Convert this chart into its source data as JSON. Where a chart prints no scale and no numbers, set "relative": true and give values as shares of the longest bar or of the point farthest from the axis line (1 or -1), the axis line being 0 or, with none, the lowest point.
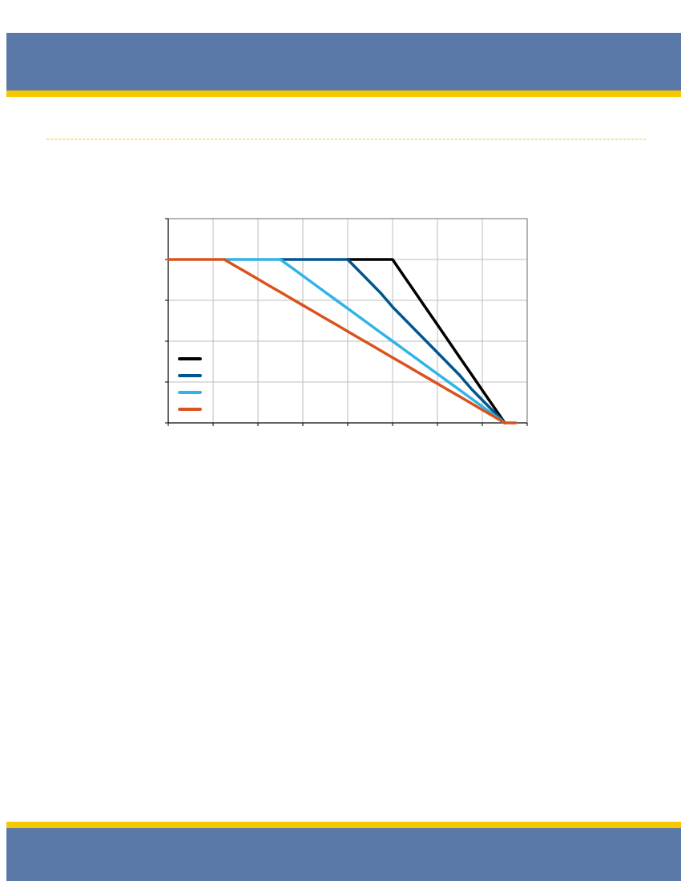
{
  "chart_data": {
    "type": "line",
    "relative": true,
    "grid": true,
    "line_style": "solid",
    "marker": "none",
    "categories": [
      null,
      null,
      null,
      null,
      null,
      null,
      null,
      null,
      null,
      null,
      null,
      null,
      null,
      null,
      null,
      null,
      null,
      null,
      null,
      null,
      null,
      null,
      null,
      null,
      null,
      null,
      null,
      null,
      null,
      null,
      null,
      null,
      null
    ],
    "series": [
      {
        "color": "#000000",
        "values": [
          null,
          null,
          null,
          null,
          null,
          null,
          null,
          null,
          null,
          null,
          null,
          null,
          null,
          null,
          null,
          null,
          1,
          1,
          1,
          1,
          1,
          0.9,
          0.8,
          0.7,
          0.6,
          0.5,
          0.4,
          0.3,
          0.2,
          0.1,
          0,
          null,
          null
        ]
      },
      {
        "color": "#00568f",
        "values": [
          null,
          null,
          null,
          null,
          null,
          null,
          null,
          null,
          null,
          null,
          1,
          1,
          1,
          1,
          1,
          1,
          1,
          0.93,
          0.86,
          0.79,
          0.71,
          0.64,
          0.57,
          0.5,
          0.43,
          0.36,
          0.29,
          0.21,
          0.14,
          0.07,
          0,
          null,
          null
        ]
      },
      {
        "color": "#30b4e6",
        "values": [
          null,
          null,
          null,
          null,
          null,
          1,
          1,
          1,
          1,
          1,
          1,
          0.95,
          0.9,
          0.85,
          0.8,
          0.75,
          0.7,
          0.65,
          0.6,
          0.55,
          0.5,
          0.45,
          0.4,
          0.35,
          0.3,
          0.25,
          0.2,
          0.15,
          0.1,
          0.05,
          0,
          null,
          null
        ]
      },
      {
        "color": "#d9531e",
        "values": [
          1,
          1,
          1,
          1,
          1,
          1,
          0.96,
          0.92,
          0.88,
          0.84,
          0.8,
          0.76,
          0.72,
          0.68,
          0.64,
          0.6,
          0.56,
          0.52,
          0.48,
          0.44,
          0.4,
          0.36,
          0.32,
          0.28,
          0.24,
          0.2,
          0.16,
          0.12,
          0.08,
          0.04,
          0,
          0,
          null
        ]
      }
    ]
  }
}
